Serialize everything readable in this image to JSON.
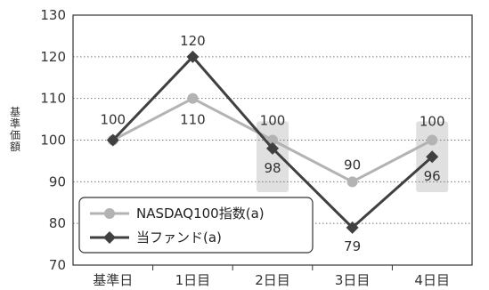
{
  "chart_data": {
    "type": "line",
    "categories": [
      "基準日",
      "1日目",
      "2日目",
      "3日目",
      "4日目"
    ],
    "ylabel": "基準価額",
    "ylim": [
      70,
      130
    ],
    "yticks": [
      70,
      80,
      90,
      100,
      110,
      120,
      130
    ],
    "grid": "horizontal-dotted",
    "legend_position": "bottom-left",
    "series": [
      {
        "name": "NASDAQ100指数(a)",
        "values": [
          100,
          110,
          100,
          90,
          100
        ],
        "color": "#b3b3b3",
        "marker": "circle",
        "labels": [
          "",
          "110",
          "100",
          "90",
          "100"
        ]
      },
      {
        "name": "当ファンド(a)",
        "values": [
          100,
          120,
          98,
          79,
          96
        ],
        "color": "#404040",
        "marker": "diamond",
        "labels": [
          "100",
          "120",
          "98",
          "79",
          "96"
        ]
      }
    ],
    "highlight_categories": [
      "2日目",
      "4日目"
    ],
    "highlight_color": "#e0e0e0"
  }
}
